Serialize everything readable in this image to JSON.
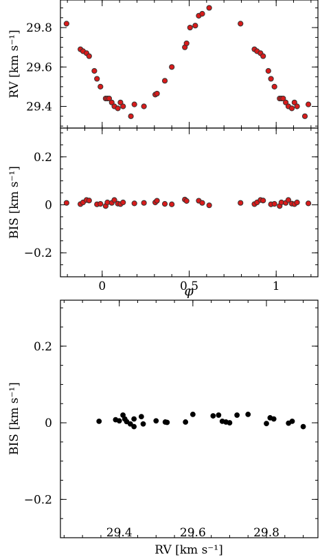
{
  "chart_data": [
    {
      "id": "rv-phase",
      "type": "scatter",
      "title": "",
      "xlabel": "",
      "ylabel": "RV [km s⁻¹]",
      "xlim": [
        -0.24,
        1.24
      ],
      "ylim": [
        29.29,
        29.94
      ],
      "x_ticks": [
        0,
        0.5,
        1
      ],
      "x_tick_labels": [
        "",
        "",
        ""
      ],
      "y_ticks": [
        29.4,
        29.6,
        29.8
      ],
      "y_tick_labels": [
        "29.4",
        "29.6",
        "29.8"
      ],
      "grid": false,
      "marker": {
        "fill": "#d81b1b",
        "edge": "#333333"
      },
      "series": [
        {
          "x": [
            -0.205,
            -0.125,
            -0.11,
            -0.09,
            -0.075,
            -0.045,
            -0.03,
            -0.01,
            0.02,
            0.03,
            0.04,
            0.055,
            0.07,
            0.09,
            0.105,
            0.12,
            0.165,
            0.185,
            0.24,
            0.305,
            0.315,
            0.36,
            0.4,
            0.475,
            0.485,
            0.505,
            0.535,
            0.555,
            0.575,
            0.615,
            0.795,
            0.875,
            0.89,
            0.91,
            0.925,
            0.955,
            0.97,
            0.99,
            1.02,
            1.03,
            1.04,
            1.055,
            1.07,
            1.09,
            1.105,
            1.12,
            1.165,
            1.185
          ],
          "y": [
            29.82,
            29.69,
            29.68,
            29.67,
            29.655,
            29.58,
            29.54,
            29.5,
            29.44,
            29.44,
            29.44,
            29.42,
            29.4,
            29.39,
            29.42,
            29.4,
            29.35,
            29.41,
            29.4,
            29.46,
            29.465,
            29.53,
            29.6,
            29.7,
            29.72,
            29.8,
            29.81,
            29.86,
            29.87,
            29.9,
            29.82,
            29.69,
            29.68,
            29.67,
            29.655,
            29.58,
            29.54,
            29.5,
            29.44,
            29.44,
            29.44,
            29.42,
            29.4,
            29.39,
            29.42,
            29.4,
            29.35,
            29.41
          ]
        }
      ]
    },
    {
      "id": "bis-phase",
      "type": "scatter",
      "title": "",
      "xlabel": "φ",
      "ylabel": "BIS [km s⁻¹]",
      "xlim": [
        -0.24,
        1.24
      ],
      "ylim": [
        -0.3,
        0.32
      ],
      "x_ticks": [
        0,
        0.5,
        1
      ],
      "x_tick_labels": [
        "0",
        "0.5",
        "1"
      ],
      "y_ticks": [
        -0.2,
        0,
        0.2
      ],
      "y_tick_labels": [
        "−0.2",
        "0",
        "0.2"
      ],
      "grid": false,
      "marker": {
        "fill": "#d81b1b",
        "edge": "#333333"
      },
      "series": [
        {
          "x": [
            -0.205,
            -0.125,
            -0.11,
            -0.09,
            -0.075,
            -0.03,
            -0.01,
            0.02,
            0.03,
            0.055,
            0.07,
            0.09,
            0.105,
            0.12,
            0.185,
            0.24,
            0.305,
            0.315,
            0.36,
            0.4,
            0.475,
            0.485,
            0.555,
            0.575,
            0.615,
            0.795,
            0.875,
            0.89,
            0.91,
            0.925,
            0.97,
            0.99,
            1.02,
            1.03,
            1.055,
            1.07,
            1.09,
            1.105,
            1.12,
            1.185
          ],
          "y": [
            0.008,
            0.003,
            0.01,
            0.02,
            0.018,
            0.002,
            0.004,
            -0.005,
            0.01,
            0.008,
            0.02,
            0.005,
            0.003,
            0.01,
            0.006,
            0.008,
            0.01,
            0.017,
            0.004,
            0.002,
            0.022,
            0.016,
            0.017,
            0.008,
            -0.002,
            0.008,
            0.003,
            0.01,
            0.02,
            0.018,
            0.002,
            0.004,
            -0.005,
            0.01,
            0.008,
            0.02,
            0.005,
            0.003,
            0.01,
            0.006
          ]
        }
      ]
    },
    {
      "id": "bis-rv",
      "type": "scatter",
      "title": "",
      "xlabel": "RV [km s⁻¹]",
      "ylabel": "BIS [km s⁻¹]",
      "xlim": [
        29.24,
        29.94
      ],
      "ylim": [
        -0.3,
        0.32
      ],
      "x_ticks": [
        29.4,
        29.6,
        29.8
      ],
      "x_tick_labels": [
        "29.4",
        "29.6",
        "29.8"
      ],
      "y_ticks": [
        -0.2,
        0,
        0.2
      ],
      "y_tick_labels": [
        "−0.2",
        "0",
        "0.2"
      ],
      "grid": false,
      "marker": {
        "fill": "#000000",
        "edge": "#000000"
      },
      "series": [
        {
          "x": [
            29.345,
            29.39,
            29.4,
            29.41,
            29.415,
            29.42,
            29.43,
            29.44,
            29.44,
            29.46,
            29.465,
            29.5,
            29.525,
            29.53,
            29.58,
            29.6,
            29.655,
            29.67,
            29.68,
            29.69,
            29.7,
            29.72,
            29.75,
            29.8,
            29.81,
            29.82,
            29.86,
            29.87,
            29.9
          ],
          "y": [
            0.004,
            0.008,
            0.005,
            0.02,
            0.01,
            0.003,
            -0.003,
            0.01,
            -0.01,
            0.016,
            -0.003,
            0.005,
            0.002,
            0.001,
            0.002,
            0.022,
            0.018,
            0.02,
            0.004,
            0.002,
            0.0,
            0.02,
            0.022,
            -0.002,
            0.013,
            0.01,
            -0.001,
            0.004,
            -0.01
          ]
        }
      ]
    }
  ]
}
